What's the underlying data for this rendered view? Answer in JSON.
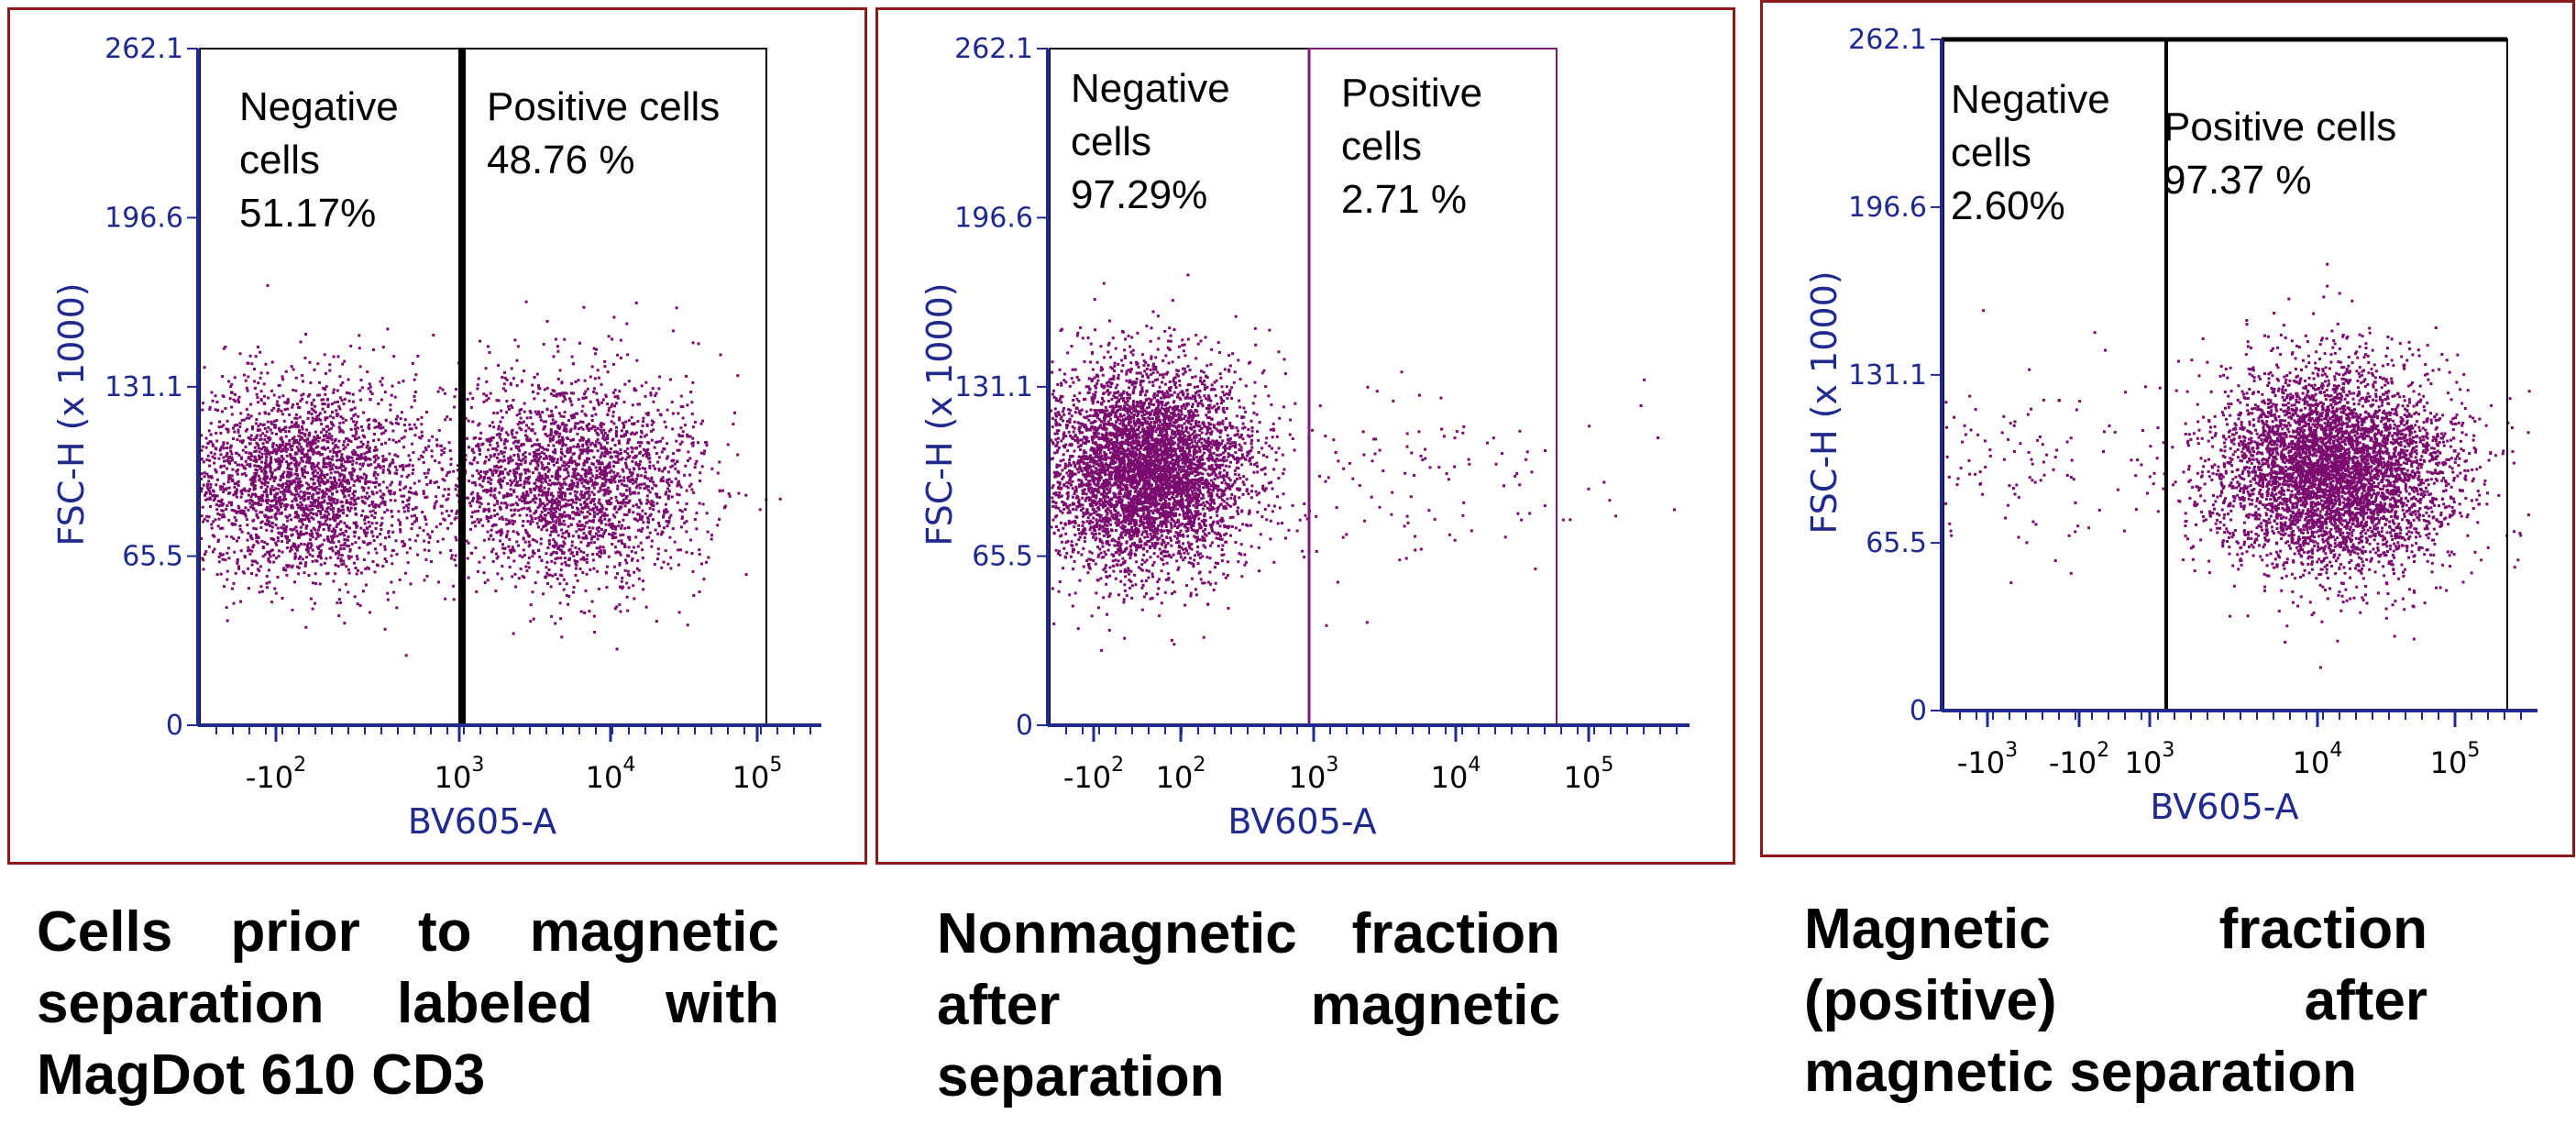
{
  "chart_data": [
    {
      "type": "scatter",
      "title": "",
      "xlabel": "BV605-A",
      "ylabel": "FSC-H (x 1000)",
      "y_ticks": [
        "262.1",
        "196.6",
        "131.1",
        "65.5",
        "0"
      ],
      "y_tick_values": [
        262.1,
        196.6,
        131.1,
        65.5,
        0
      ],
      "ylim": [
        0,
        262.1
      ],
      "x_ticks": [
        "-10",
        "2",
        "10",
        "3",
        "10",
        "4",
        "10",
        "5"
      ],
      "x_tick_labels": [
        {
          "base": "-10",
          "exp": "2"
        },
        {
          "base": "10",
          "exp": "3"
        },
        {
          "base": "10",
          "exp": "4"
        },
        {
          "base": "10",
          "exp": "5"
        }
      ],
      "gates": [
        {
          "name": "Negative cells",
          "line1": "Negative",
          "line2": "cells",
          "pct": "51.17%"
        },
        {
          "name": "Positive cells",
          "line1": "Positive cells",
          "line2": "",
          "pct": "48.76 %"
        }
      ],
      "populations": [
        {
          "label": "Negative cells",
          "fraction": 0.5117,
          "center_log_x": 2.2,
          "center_y": 95
        },
        {
          "label": "Positive cells",
          "fraction": 0.4876,
          "center_log_x": 3.7,
          "center_y": 95
        }
      ],
      "caption": "Cells prior to magnetic separation labeled with MagDot 610 CD3"
    },
    {
      "type": "scatter",
      "title": "",
      "xlabel": "BV605-A",
      "ylabel": "FSC-H (x 1000)",
      "y_ticks": [
        "262.1",
        "196.6",
        "131.1",
        "65.5",
        "0"
      ],
      "y_tick_values": [
        262.1,
        196.6,
        131.1,
        65.5,
        0
      ],
      "ylim": [
        0,
        262.1
      ],
      "x_tick_labels": [
        {
          "base": "-10",
          "exp": "2"
        },
        {
          "base": "10",
          "exp": "2"
        },
        {
          "base": "10",
          "exp": "3"
        },
        {
          "base": "10",
          "exp": "4"
        },
        {
          "base": "10",
          "exp": "5"
        }
      ],
      "gates": [
        {
          "name": "Negative cells",
          "line1": "Negative",
          "line2": "cells",
          "pct": "97.29%"
        },
        {
          "name": "Positive cells",
          "line1": "Positive",
          "line2": "cells",
          "pct": "2.71 %"
        }
      ],
      "populations": [
        {
          "label": "Negative cells",
          "fraction": 0.9729,
          "center_log_x": 2.1,
          "center_y": 100
        },
        {
          "label": "Positive cells",
          "fraction": 0.0271,
          "center_log_x": 3.8,
          "center_y": 95
        }
      ],
      "caption": "Nonmagnetic fraction after magnetic separation"
    },
    {
      "type": "scatter",
      "title": "",
      "xlabel": "BV605-A",
      "ylabel": "FSC-H (x 1000)",
      "y_ticks": [
        "262.1",
        "196.6",
        "131.1",
        "65.5",
        "0"
      ],
      "y_tick_values": [
        262.1,
        196.6,
        131.1,
        65.5,
        0
      ],
      "ylim": [
        0,
        262.1
      ],
      "x_tick_labels": [
        {
          "base": "-10",
          "exp": "3"
        },
        {
          "base": "-10",
          "exp": "2"
        },
        {
          "base": "10",
          "exp": "3"
        },
        {
          "base": "10",
          "exp": "4"
        },
        {
          "base": "10",
          "exp": "5"
        }
      ],
      "gates": [
        {
          "name": "Negative cells",
          "line1": "Negative",
          "line2": "cells",
          "pct": "2.60%"
        },
        {
          "name": "Positive cells",
          "line1": "Positive cells",
          "line2": "",
          "pct": "97.37 %"
        }
      ],
      "populations": [
        {
          "label": "Negative cells",
          "fraction": 0.026,
          "center_log_x": 2.3,
          "center_y": 95
        },
        {
          "label": "Positive cells",
          "fraction": 0.9737,
          "center_log_x": 4.0,
          "center_y": 95
        }
      ],
      "caption": "Magnetic fraction (positive) after magnetic separation"
    }
  ],
  "colors": {
    "frame": "#8b1a1a",
    "axis": "#1f2a8c",
    "dots": "#7a0a6e",
    "gate_panel2": "#7a1a7a"
  }
}
